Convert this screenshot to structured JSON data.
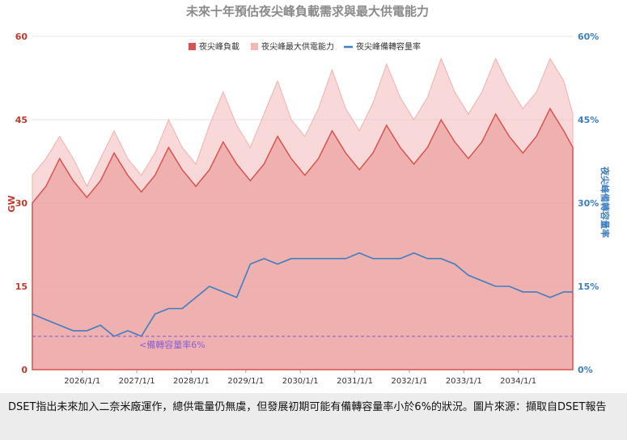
{
  "caption": "DSET指出未來加入二奈米廠運作，總供電量仍無虞，但發展初期可能有備轉容量率小於6%的狀況。圖片來源：擷取自DSET報告",
  "colors": {
    "peak_load": "#d9534f",
    "max_supply": "#f2b8b8",
    "reserve_margin": "#3d7fc1",
    "threshold": "#8a5fd6",
    "title": "#8a8a8a"
  },
  "chart_data": {
    "type": "area",
    "title": "未來十年預估夜尖峰負載需求與最大供電能力",
    "ylabel_left": "GW",
    "ylabel_right": "夜尖峰備轉容量率",
    "y_left_ticks": [
      "0",
      "15",
      "30",
      "45",
      "60"
    ],
    "y_right_ticks": [
      "0%",
      "15%",
      "30%",
      "45%",
      "60%"
    ],
    "ylim_left": [
      0,
      60
    ],
    "ylim_right": [
      0,
      60
    ],
    "x_ticks": [
      "2026/1/1",
      "2027/1/1",
      "2028/1/1",
      "2029/1/1",
      "2030/1/1",
      "2031/1/1",
      "2032/1/1",
      "2033/1/1",
      "2034/1/1"
    ],
    "xlim": [
      "2025/2/1",
      "2035/1/1"
    ],
    "legend_position": "top-right",
    "grid": true,
    "legend": [
      "夜尖峰負載",
      "夜尖峰最大供電能力",
      "夜尖峰備轉容量率"
    ],
    "threshold": {
      "value": 6,
      "label": "<備轉容量率6%"
    },
    "x": [
      "2025/2",
      "2025/5",
      "2025/8",
      "2025/11",
      "2026/2",
      "2026/5",
      "2026/8",
      "2026/11",
      "2027/2",
      "2027/5",
      "2027/8",
      "2027/11",
      "2028/2",
      "2028/5",
      "2028/8",
      "2028/11",
      "2029/2",
      "2029/5",
      "2029/8",
      "2029/11",
      "2030/2",
      "2030/5",
      "2030/8",
      "2030/11",
      "2031/2",
      "2031/5",
      "2031/8",
      "2031/11",
      "2032/2",
      "2032/5",
      "2032/8",
      "2032/11",
      "2033/2",
      "2033/5",
      "2033/8",
      "2033/11",
      "2034/2",
      "2034/5",
      "2034/8",
      "2034/11",
      "2035/1"
    ],
    "series": [
      {
        "name": "夜尖峰負載",
        "axis": "left",
        "values": [
          30,
          33,
          38,
          34,
          31,
          34,
          39,
          35,
          32,
          35,
          40,
          36,
          33,
          36,
          41,
          37,
          34,
          37,
          42,
          38,
          35,
          38,
          43,
          39,
          36,
          39,
          44,
          40,
          37,
          40,
          45,
          41,
          38,
          41,
          46,
          42,
          39,
          42,
          47,
          43,
          40
        ]
      },
      {
        "name": "夜尖峰最大供電能力",
        "axis": "left",
        "values": [
          35,
          38,
          42,
          38,
          33,
          38,
          43,
          38,
          35,
          39,
          45,
          40,
          37,
          44,
          50,
          44,
          40,
          46,
          52,
          45,
          42,
          47,
          54,
          47,
          43,
          48,
          55,
          49,
          45,
          49,
          56,
          50,
          46,
          50,
          56,
          51,
          47,
          50,
          56,
          52,
          46
        ]
      },
      {
        "name": "夜尖峰備轉容量率",
        "axis": "right",
        "values": [
          10,
          9,
          8,
          7,
          7,
          8,
          6,
          7,
          6,
          10,
          11,
          11,
          13,
          15,
          14,
          13,
          19,
          20,
          19,
          20,
          20,
          20,
          20,
          20,
          21,
          20,
          20,
          20,
          21,
          20,
          20,
          19,
          17,
          16,
          15,
          15,
          14,
          14,
          13,
          14,
          14
        ]
      }
    ]
  }
}
